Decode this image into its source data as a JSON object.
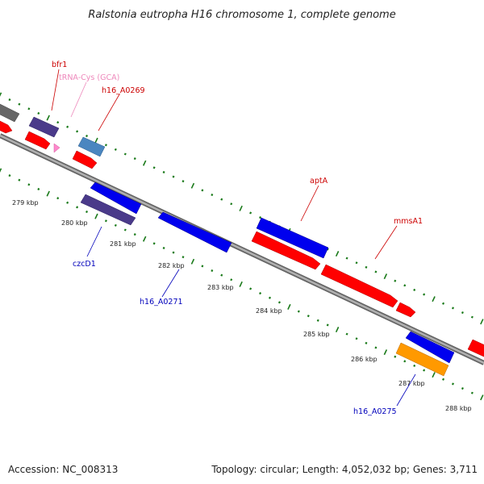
{
  "title": "Ralstonia eutropha H16 chromosome 1, complete genome",
  "footer": {
    "accession": "Accession: NC_008313",
    "summary": "Topology: circular; Length: 4,052,032 bp; Genes: 3,711"
  },
  "kbp_labels": [
    "279 kbp",
    "280 kbp",
    "281 kbp",
    "282 kbp",
    "283 kbp",
    "284 kbp",
    "285 kbp",
    "286 kbp",
    "287 kbp",
    "288 kbp"
  ],
  "gene_labels": [
    {
      "name": "bfr1",
      "color": "#cc0000"
    },
    {
      "name": "tRNA-Cys (GCA)",
      "color": "#ee88bb"
    },
    {
      "name": "h16_A0269",
      "color": "#cc0000"
    },
    {
      "name": "czcD1",
      "color": "#0000bb"
    },
    {
      "name": "h16_A0271",
      "color": "#0000bb"
    },
    {
      "name": "aptA",
      "color": "#cc0000"
    },
    {
      "name": "mmsA1",
      "color": "#cc0000"
    },
    {
      "name": "h16_A0275",
      "color": "#0000bb"
    }
  ],
  "colors": {
    "backbone": "#8a8a8a",
    "tick": "#1a7a1a",
    "cds_red": "#ff0000",
    "cds_blue": "#0000ee",
    "cds_purple": "#4a3a8a",
    "cds_gray": "#666666",
    "cds_steel": "#4a86c0",
    "cds_orange": "#ff9900",
    "trna_pink": "#ff88cc"
  }
}
